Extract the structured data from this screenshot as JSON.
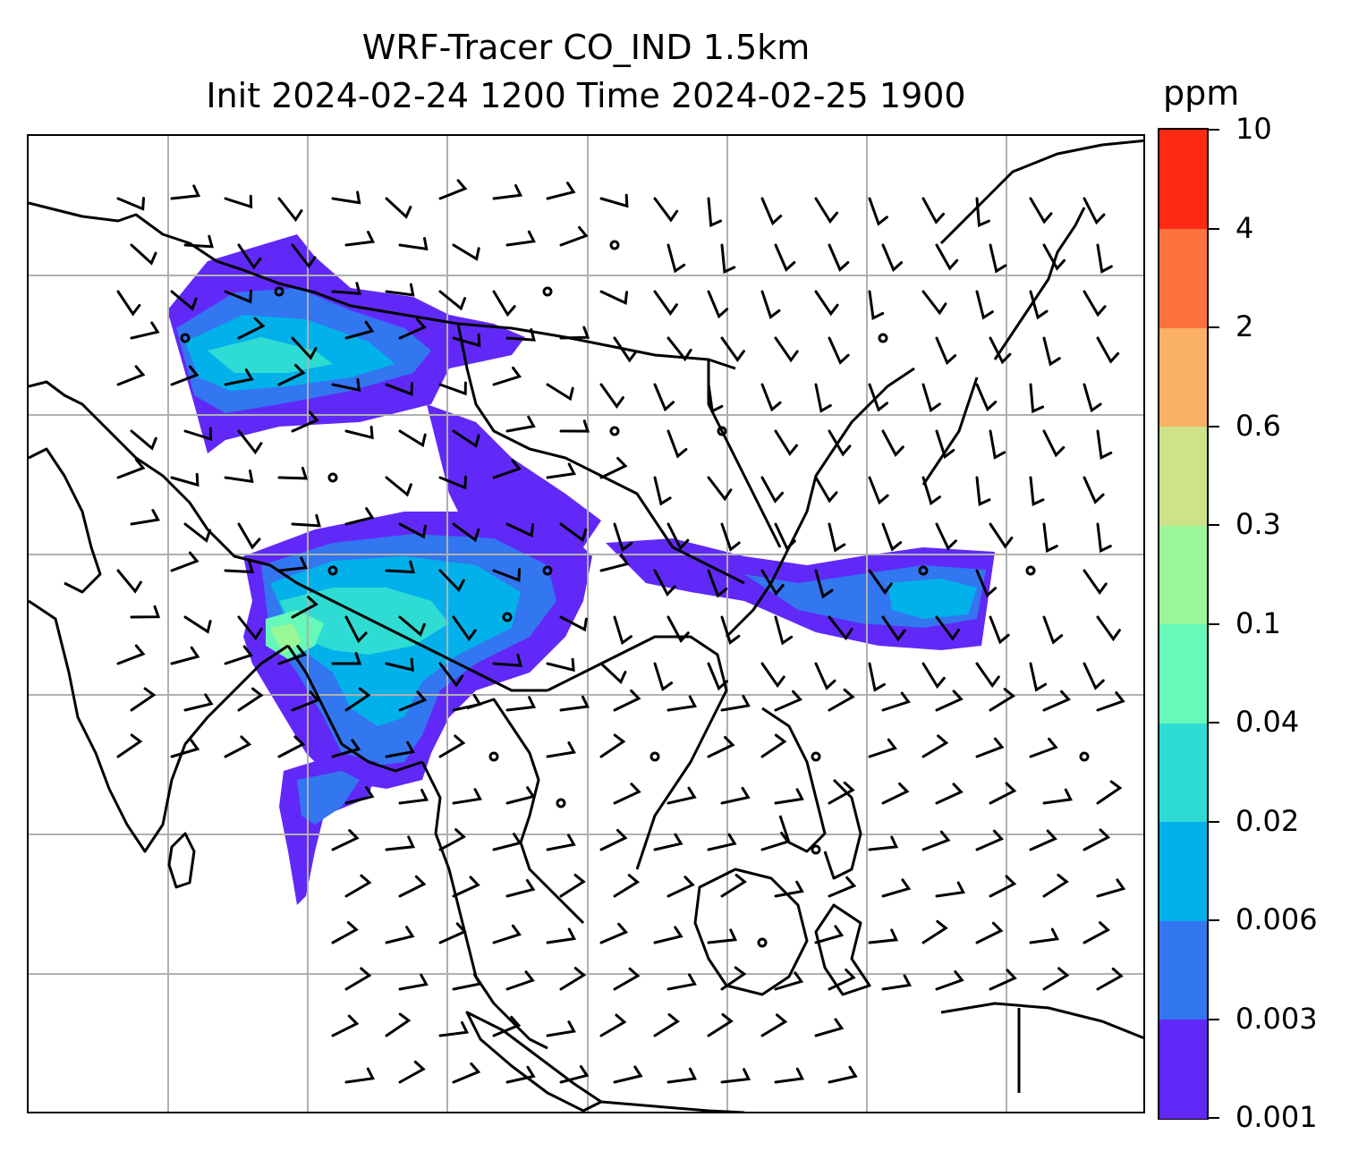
{
  "title": {
    "line1": "WRF-Tracer CO_IND 1.5km",
    "line2": "Init 2024-02-24 1200 Time 2024-02-25 1900"
  },
  "colorbar": {
    "unit": "ppm",
    "levels": [
      "0.001",
      "0.003",
      "0.006",
      "0.02",
      "0.04",
      "0.1",
      "0.3",
      "0.6",
      "2",
      "4",
      "10"
    ],
    "colors": [
      "#6129f7",
      "#3276f0",
      "#03b1ea",
      "#2fdcd3",
      "#66f9b7",
      "#9af797",
      "#cee28a",
      "#fbb163",
      "#fd733e",
      "#fe2a16"
    ]
  },
  "map": {
    "coastline_color": "#000000",
    "gridline_color": "#b0b0b0",
    "wind_barb_color": "#000000",
    "plume_color": "#6129f7"
  }
}
